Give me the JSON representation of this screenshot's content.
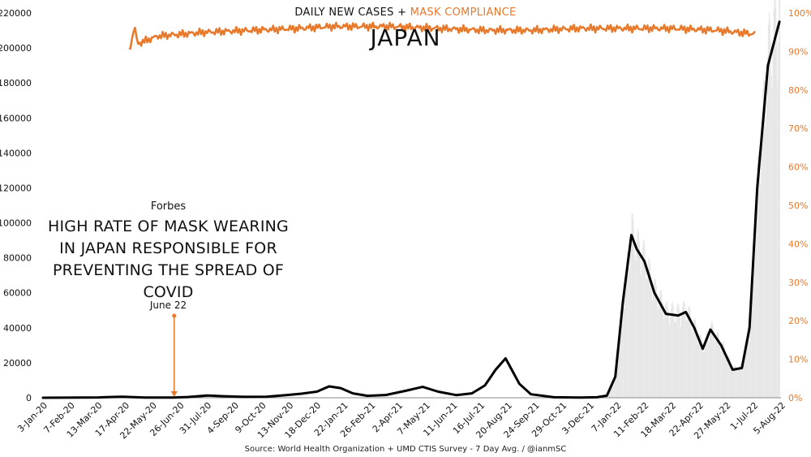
{
  "header": {
    "title_cases": "DAILY NEW CASES + ",
    "title_mask": "MASK COMPLIANCE",
    "country": "JAPAN"
  },
  "annotation": {
    "source": "Forbes",
    "headline": "HIGH RATE OF MASK WEARING IN JAPAN RESPONSIBLE FOR PREVENTING THE SPREAD OF COVID",
    "date": "June 22"
  },
  "footer": {
    "source": "Source: World Health Organization + UMD CTIS Survey - 7 Day Avg. / @ianmSC"
  },
  "colors": {
    "cases_line": "#000000",
    "cases_bars": "#e6e6e6",
    "mask_line": "#e8782a",
    "left_axis_text": "#111111",
    "right_axis_text": "#e8782a"
  },
  "chart_data": {
    "type": "line",
    "title": "DAILY NEW CASES + MASK COMPLIANCE",
    "subtitle": "JAPAN",
    "x_ticks": [
      "3-Jan-20",
      "7-Feb-20",
      "13-Mar-20",
      "17-Apr-20",
      "22-May-20",
      "26-Jun-20",
      "31-Jul-20",
      "4-Sep-20",
      "9-Oct-20",
      "13-Nov-20",
      "18-Dec-20",
      "22-Jan-21",
      "26-Feb-21",
      "2-Apr-21",
      "7-May-21",
      "11-Jun-21",
      "16-Jul-21",
      "20-Aug-21",
      "24-Sep-21",
      "29-Oct-21",
      "3-Dec-21",
      "7-Jan-22",
      "11-Feb-22",
      "18-Mar-22",
      "22-Apr-22",
      "27-May-22",
      "1-Jul-22",
      "5-Aug-22"
    ],
    "y_left": {
      "min": 0,
      "max": 220000,
      "step": 20000,
      "ticks": [
        "0",
        "20000",
        "40000",
        "60000",
        "80000",
        "100000",
        "120000",
        "140000",
        "160000",
        "180000",
        "200000",
        "220000"
      ]
    },
    "y_right": {
      "min": 0,
      "max": 100,
      "step": 10,
      "ticks": [
        "0%",
        "10%",
        "20%",
        "30%",
        "40%",
        "50%",
        "60%",
        "70%",
        "80%",
        "90%",
        "100%"
      ]
    },
    "annotation_marker": {
      "date": "2020-06-22",
      "label": "June 22"
    },
    "series": [
      {
        "name": "DAILY NEW CASES",
        "axis": "left",
        "points": [
          [
            "2020-01-03",
            0
          ],
          [
            "2020-03-15",
            200
          ],
          [
            "2020-04-15",
            600
          ],
          [
            "2020-05-15",
            150
          ],
          [
            "2020-06-20",
            100
          ],
          [
            "2020-07-10",
            400
          ],
          [
            "2020-08-05",
            1300
          ],
          [
            "2020-08-25",
            900
          ],
          [
            "2020-09-20",
            500
          ],
          [
            "2020-10-20",
            600
          ],
          [
            "2020-11-15",
            1500
          ],
          [
            "2020-12-05",
            2300
          ],
          [
            "2020-12-25",
            3500
          ],
          [
            "2021-01-10",
            6500
          ],
          [
            "2021-01-25",
            5500
          ],
          [
            "2021-02-10",
            2500
          ],
          [
            "2021-03-01",
            1100
          ],
          [
            "2021-03-25",
            1600
          ],
          [
            "2021-04-20",
            4000
          ],
          [
            "2021-05-12",
            6200
          ],
          [
            "2021-06-01",
            3500
          ],
          [
            "2021-06-25",
            1500
          ],
          [
            "2021-07-15",
            2500
          ],
          [
            "2021-08-01",
            7000
          ],
          [
            "2021-08-15",
            16000
          ],
          [
            "2021-08-28",
            22500
          ],
          [
            "2021-09-15",
            8000
          ],
          [
            "2021-09-30",
            2000
          ],
          [
            "2021-10-30",
            300
          ],
          [
            "2021-12-03",
            150
          ],
          [
            "2021-12-25",
            300
          ],
          [
            "2022-01-07",
            1200
          ],
          [
            "2022-01-18",
            12000
          ],
          [
            "2022-01-28",
            55000
          ],
          [
            "2022-02-08",
            93000
          ],
          [
            "2022-02-15",
            85000
          ],
          [
            "2022-02-25",
            78000
          ],
          [
            "2022-03-10",
            60000
          ],
          [
            "2022-03-25",
            48000
          ],
          [
            "2022-04-10",
            47000
          ],
          [
            "2022-04-20",
            49000
          ],
          [
            "2022-05-01",
            40000
          ],
          [
            "2022-05-12",
            28000
          ],
          [
            "2022-05-22",
            39000
          ],
          [
            "2022-06-05",
            30000
          ],
          [
            "2022-06-20",
            16000
          ],
          [
            "2022-07-02",
            17000
          ],
          [
            "2022-07-12",
            40000
          ],
          [
            "2022-07-22",
            120000
          ],
          [
            "2022-08-05",
            190000
          ],
          [
            "2022-08-20",
            215000
          ]
        ]
      },
      {
        "name": "MASK COMPLIANCE",
        "axis": "right",
        "points": [
          [
            "2020-04-24",
            90
          ],
          [
            "2020-04-29",
            94
          ],
          [
            "2020-05-01",
            97
          ],
          [
            "2020-05-05",
            92
          ],
          [
            "2020-06-01",
            94
          ],
          [
            "2020-08-01",
            95
          ],
          [
            "2020-10-01",
            95.5
          ],
          [
            "2020-12-01",
            96
          ],
          [
            "2021-01-15",
            96.5
          ],
          [
            "2021-04-01",
            96.5
          ],
          [
            "2021-06-01",
            96
          ],
          [
            "2021-08-01",
            95.5
          ],
          [
            "2021-10-01",
            95.5
          ],
          [
            "2021-12-01",
            96
          ],
          [
            "2022-02-01",
            96
          ],
          [
            "2022-04-01",
            96
          ],
          [
            "2022-06-01",
            95.5
          ],
          [
            "2022-07-20",
            94.5
          ]
        ]
      }
    ],
    "background_bars": "daily case counts shown as light grey bars behind the 7-day average line"
  }
}
